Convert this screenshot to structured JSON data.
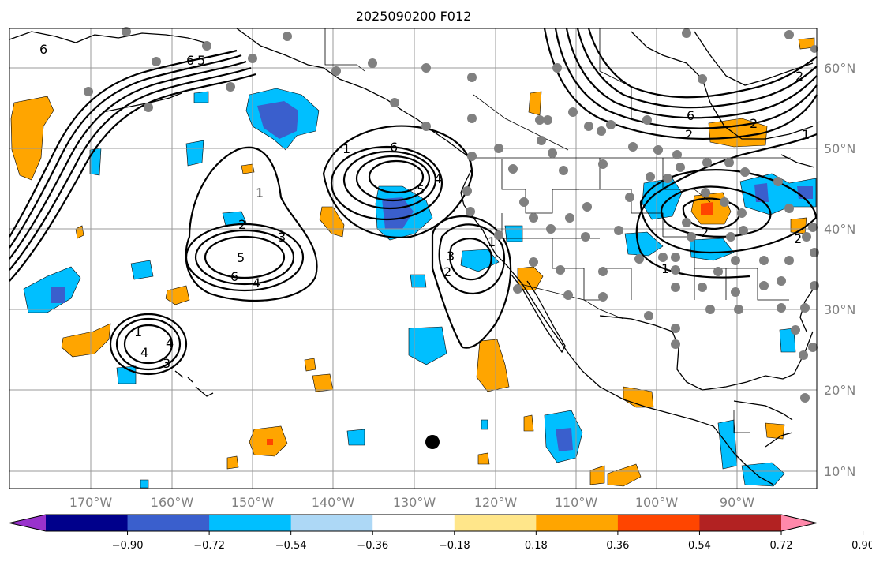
{
  "title": "2025090200 F012",
  "lat_labels": [
    "60°N",
    "50°N",
    "40°N",
    "30°N",
    "20°N",
    "10°N"
  ],
  "lon_labels": [
    "170°W",
    "160°W",
    "150°W",
    "140°W",
    "130°W",
    "120°W",
    "110°W",
    "100°W",
    "90°W"
  ],
  "colorbar": {
    "ticks": [
      "−0.90",
      "−0.72",
      "−0.54",
      "−0.36",
      "−0.18",
      "0.18",
      "0.36",
      "0.54",
      "0.72",
      "0.90"
    ],
    "colors": [
      "#9932cc",
      "#00008b",
      "#3a5fcd",
      "#00bfff",
      "#add8f6",
      "#ffffff",
      "#ffe68a",
      "#ffa500",
      "#ff4500",
      "#b22222",
      "#ff88aa"
    ]
  },
  "contour_labels": [
    "6",
    "6",
    "5",
    "4",
    "3",
    "2",
    "1",
    "1",
    "2",
    "3",
    "4",
    "5",
    "6",
    "6",
    "5",
    "4",
    "3",
    "2",
    "1",
    "1",
    "2",
    "3",
    "4",
    "5",
    "6",
    "1",
    "3",
    "2",
    "4",
    "5",
    "6",
    "1",
    "2",
    "3",
    "4",
    "1",
    "2",
    "3",
    "4",
    "4",
    "3",
    "2",
    "1"
  ]
}
